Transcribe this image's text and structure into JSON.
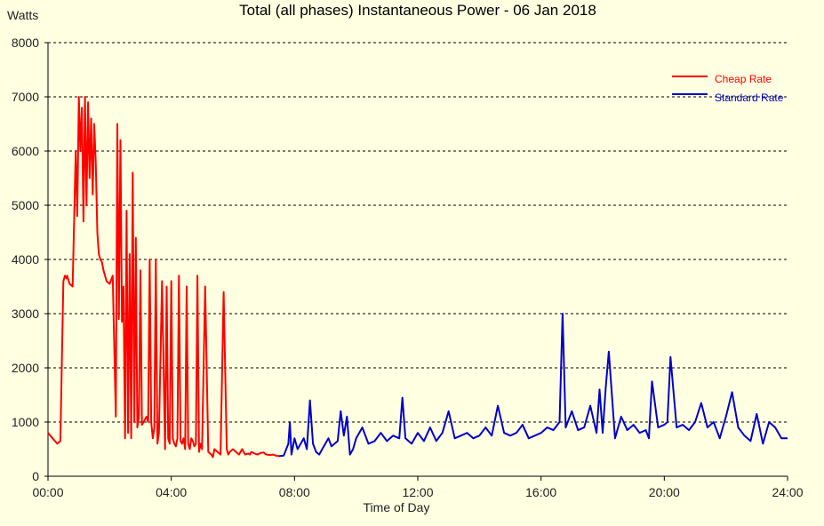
{
  "chart_data": {
    "type": "line",
    "title": "Total (all phases) Instantaneous Power - 06 Jan 2018",
    "ylabel": "Watts",
    "xlabel": "Time of Day",
    "ylim": [
      0,
      8000
    ],
    "xlim": [
      0,
      24
    ],
    "y_ticks": [
      0,
      1000,
      2000,
      3000,
      4000,
      5000,
      6000,
      7000,
      8000
    ],
    "x_ticks": [
      {
        "value": 0,
        "label": "00:00"
      },
      {
        "value": 4,
        "label": "04:00"
      },
      {
        "value": 8,
        "label": "08:00"
      },
      {
        "value": 12,
        "label": "12:00"
      },
      {
        "value": 16,
        "label": "16:00"
      },
      {
        "value": 20,
        "label": "20:00"
      },
      {
        "value": 24,
        "label": "24:00"
      }
    ],
    "grid": "horizontal dashed",
    "legend_position": "top-right",
    "series": [
      {
        "name": "Cheap Rate",
        "color": "#FF0000",
        "x": [
          0,
          0.15,
          0.3,
          0.4,
          0.5,
          0.55,
          0.6,
          0.62,
          0.7,
          0.8,
          0.9,
          0.95,
          1.0,
          1.05,
          1.1,
          1.15,
          1.2,
          1.25,
          1.3,
          1.35,
          1.4,
          1.45,
          1.5,
          1.55,
          1.6,
          1.65,
          1.7,
          1.75,
          1.8,
          1.9,
          2.0,
          2.1,
          2.2,
          2.25,
          2.3,
          2.35,
          2.4,
          2.45,
          2.5,
          2.55,
          2.6,
          2.65,
          2.7,
          2.75,
          2.8,
          2.85,
          2.9,
          2.95,
          3.0,
          3.05,
          3.1,
          3.15,
          3.2,
          3.25,
          3.3,
          3.35,
          3.4,
          3.45,
          3.5,
          3.55,
          3.6,
          3.7,
          3.8,
          3.85,
          3.9,
          3.95,
          4.0,
          4.05,
          4.1,
          4.15,
          4.2,
          4.25,
          4.3,
          4.35,
          4.4,
          4.45,
          4.5,
          4.55,
          4.6,
          4.65,
          4.7,
          4.75,
          4.8,
          4.85,
          4.9,
          4.95,
          5.0,
          5.1,
          5.2,
          5.3,
          5.35,
          5.4,
          5.5,
          5.6,
          5.7,
          5.8,
          5.85,
          5.9,
          6.0,
          6.1,
          6.2,
          6.3,
          6.35,
          6.4,
          6.5,
          6.55,
          6.6,
          6.7,
          6.8,
          6.9,
          7.0,
          7.05,
          7.1,
          7.2,
          7.3,
          7.4,
          7.5
        ],
        "y": [
          800,
          700,
          600,
          650,
          3600,
          3700,
          3650,
          3700,
          3550,
          3500,
          6000,
          4800,
          7000,
          6000,
          6800,
          4700,
          7000,
          5000,
          6900,
          5500,
          6600,
          5200,
          6500,
          5800,
          4500,
          4100,
          4000,
          3950,
          3800,
          3600,
          3550,
          3700,
          1100,
          6500,
          2900,
          6200,
          2850,
          3500,
          700,
          4900,
          800,
          4100,
          700,
          5600,
          1000,
          4400,
          900,
          1100,
          3800,
          950,
          1000,
          1050,
          1100,
          1000,
          4000,
          1000,
          700,
          900,
          4000,
          600,
          800,
          3600,
          500,
          3500,
          700,
          600,
          3600,
          700,
          600,
          550,
          700,
          3700,
          650,
          600,
          700,
          500,
          3500,
          600,
          500,
          700,
          650,
          550,
          600,
          3700,
          450,
          600,
          500,
          3500,
          450,
          400,
          350,
          500,
          450,
          400,
          3400,
          500,
          400,
          450,
          500,
          450,
          400,
          500,
          450,
          400,
          420,
          400,
          450,
          420,
          400,
          430,
          440,
          410,
          400,
          390,
          400,
          380,
          370
        ]
      },
      {
        "name": "Standard Rate",
        "color": "#0000CC",
        "x": [
          7.5,
          7.65,
          7.8,
          7.85,
          7.9,
          8.0,
          8.1,
          8.2,
          8.3,
          8.4,
          8.5,
          8.6,
          8.7,
          8.8,
          8.9,
          9.0,
          9.1,
          9.2,
          9.3,
          9.4,
          9.5,
          9.6,
          9.7,
          9.8,
          9.9,
          10.0,
          10.2,
          10.4,
          10.6,
          10.8,
          11.0,
          11.2,
          11.4,
          11.5,
          11.6,
          11.8,
          12.0,
          12.2,
          12.4,
          12.6,
          12.8,
          13.0,
          13.2,
          13.4,
          13.6,
          13.8,
          14.0,
          14.2,
          14.4,
          14.6,
          14.8,
          15.0,
          15.2,
          15.4,
          15.6,
          15.8,
          16.0,
          16.2,
          16.4,
          16.6,
          16.7,
          16.8,
          17.0,
          17.2,
          17.4,
          17.6,
          17.8,
          17.9,
          18.0,
          18.1,
          18.2,
          18.4,
          18.6,
          18.8,
          19.0,
          19.2,
          19.4,
          19.5,
          19.6,
          19.8,
          20.0,
          20.1,
          20.2,
          20.4,
          20.6,
          20.8,
          21.0,
          21.2,
          21.4,
          21.6,
          21.8,
          22.0,
          22.2,
          22.4,
          22.6,
          22.8,
          23.0,
          23.2,
          23.4,
          23.6,
          23.8,
          24.0
        ],
        "y": [
          370,
          380,
          600,
          1000,
          400,
          700,
          500,
          600,
          700,
          500,
          1400,
          600,
          450,
          400,
          500,
          600,
          700,
          550,
          600,
          650,
          1200,
          750,
          1100,
          400,
          500,
          700,
          900,
          600,
          650,
          800,
          650,
          750,
          700,
          1450,
          700,
          600,
          800,
          650,
          900,
          650,
          800,
          1200,
          700,
          750,
          800,
          700,
          750,
          900,
          750,
          1300,
          800,
          750,
          800,
          950,
          700,
          750,
          800,
          900,
          850,
          1000,
          3000,
          900,
          1200,
          850,
          900,
          1300,
          800,
          1600,
          800,
          1650,
          2300,
          700,
          1100,
          850,
          950,
          800,
          850,
          700,
          1750,
          900,
          950,
          1000,
          2200,
          900,
          950,
          850,
          1000,
          1350,
          900,
          1000,
          700,
          1100,
          1550,
          900,
          750,
          650,
          1150,
          600,
          1000,
          900,
          700,
          700
        ]
      }
    ]
  }
}
